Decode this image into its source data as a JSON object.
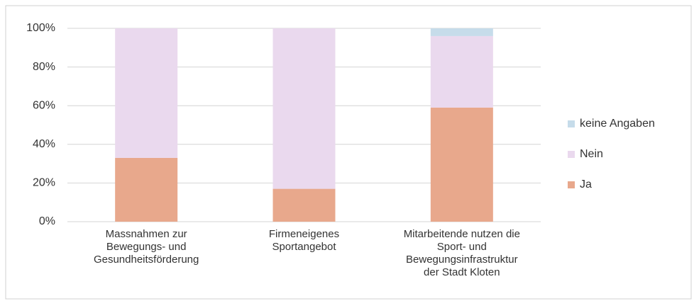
{
  "chart_data": {
    "type": "stacked_bar",
    "categories": [
      "Massnahmen zur\nBewegungs- und\nGesundheitsförderung",
      "Firmeneigenes\nSportangebot",
      "Mitarbeitende nutzen die\nSport- und\nBewegungsinfrastruktur\nder Stadt Kloten"
    ],
    "series": [
      {
        "name": "Ja",
        "color": "#e8a88c",
        "values": [
          33,
          17,
          59
        ]
      },
      {
        "name": "Nein",
        "color": "#ead9ee",
        "values": [
          67,
          83,
          37
        ]
      },
      {
        "name": "keine Angaben",
        "color": "#c6dcea",
        "values": [
          0,
          0,
          4
        ]
      }
    ],
    "ylim": [
      0,
      100
    ],
    "yticks": [
      {
        "value": 0,
        "label": "0%"
      },
      {
        "value": 20,
        "label": "20%"
      },
      {
        "value": 40,
        "label": "40%"
      },
      {
        "value": 60,
        "label": "60%"
      },
      {
        "value": 80,
        "label": "80%"
      },
      {
        "value": 100,
        "label": "100%"
      }
    ],
    "grid": true,
    "legend": "right"
  }
}
